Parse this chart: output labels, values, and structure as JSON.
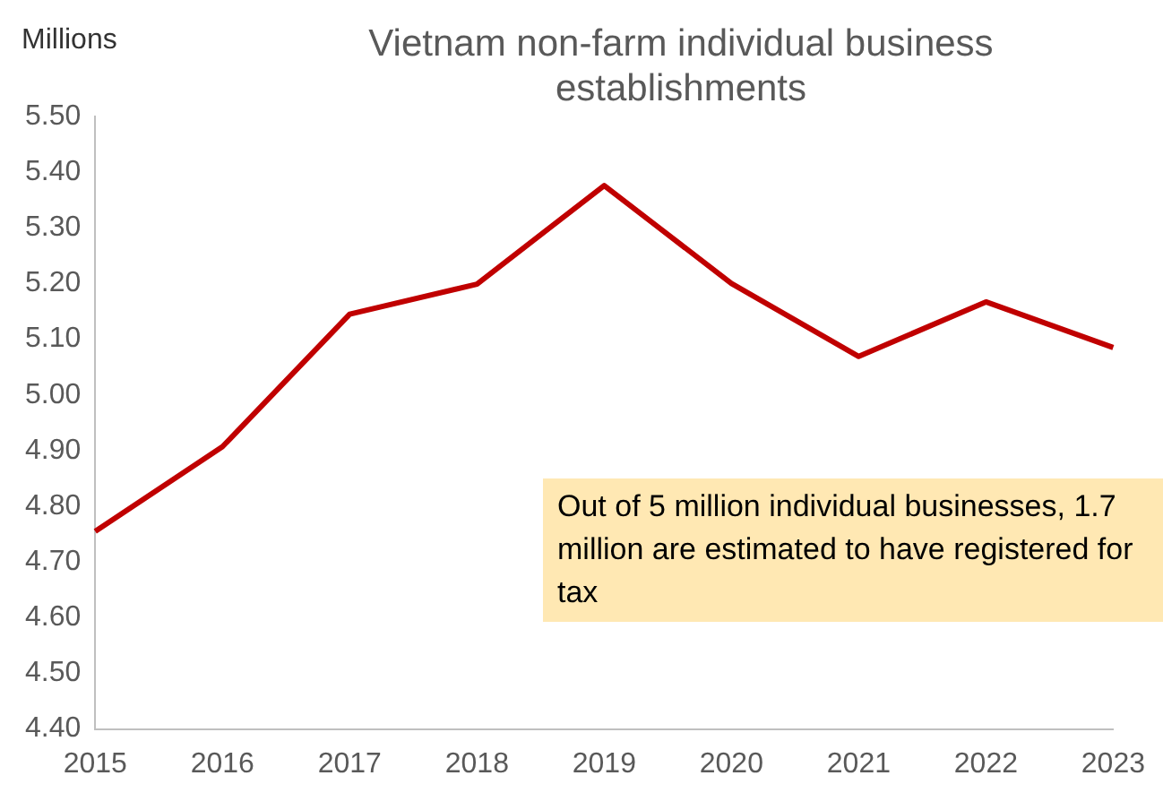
{
  "chart_data": {
    "type": "line",
    "title": "Vietnam non-farm individual business establishments",
    "ylabel": "Millions",
    "categories": [
      "2015",
      "2016",
      "2017",
      "2018",
      "2019",
      "2020",
      "2021",
      "2022",
      "2023"
    ],
    "series": [
      {
        "color": "#c00000",
        "values": [
          4.755,
          4.907,
          5.145,
          5.199,
          5.376,
          5.2,
          5.069,
          5.167,
          5.085
        ]
      }
    ],
    "ylim": [
      4.4,
      5.5
    ],
    "yticks": [
      {
        "value": 4.4,
        "label": "4.40"
      },
      {
        "value": 4.5,
        "label": "4.50"
      },
      {
        "value": 4.6,
        "label": "4.60"
      },
      {
        "value": 4.7,
        "label": "4.70"
      },
      {
        "value": 4.8,
        "label": "4.80"
      },
      {
        "value": 4.9,
        "label": "4.90"
      },
      {
        "value": 5.0,
        "label": "5.00"
      },
      {
        "value": 5.1,
        "label": "5.10"
      },
      {
        "value": 5.2,
        "label": "5.20"
      },
      {
        "value": 5.3,
        "label": "5.30"
      },
      {
        "value": 5.4,
        "label": "5.40"
      },
      {
        "value": 5.5,
        "label": "5.50"
      }
    ],
    "grid": false,
    "legend": false,
    "marker": "none",
    "line_style": "solid",
    "annotations": [
      "Out of 5 million individual businesses, 1.7 million are estimated to have registered for tax"
    ]
  }
}
